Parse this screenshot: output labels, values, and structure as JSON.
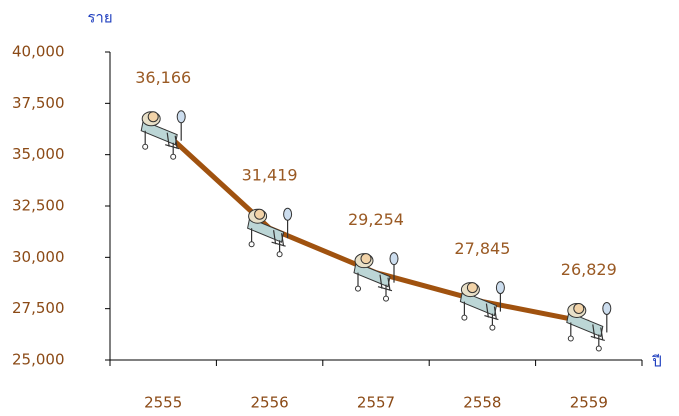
{
  "chart_data": {
    "type": "line",
    "y_label": "ราย",
    "x_label": "ปี",
    "categories": [
      "2555",
      "2556",
      "2557",
      "2558",
      "2559"
    ],
    "series": [
      {
        "name": null,
        "color": "#a0520f",
        "values": [
          36166,
          31419,
          29254,
          27845,
          26829
        ],
        "value_labels": [
          "36,166",
          "31,419",
          "29,254",
          "27,845",
          "26,829"
        ]
      }
    ],
    "ylim": [
      25000,
      40000
    ],
    "yticks": [
      {
        "value": 25000,
        "label": "25,000"
      },
      {
        "value": 27500,
        "label": "27,500"
      },
      {
        "value": 30000,
        "label": "30,000"
      },
      {
        "value": 32500,
        "label": "32,500"
      },
      {
        "value": 35000,
        "label": "35,000"
      },
      {
        "value": 37500,
        "label": "37,500"
      },
      {
        "value": 40000,
        "label": "40,000"
      }
    ]
  }
}
